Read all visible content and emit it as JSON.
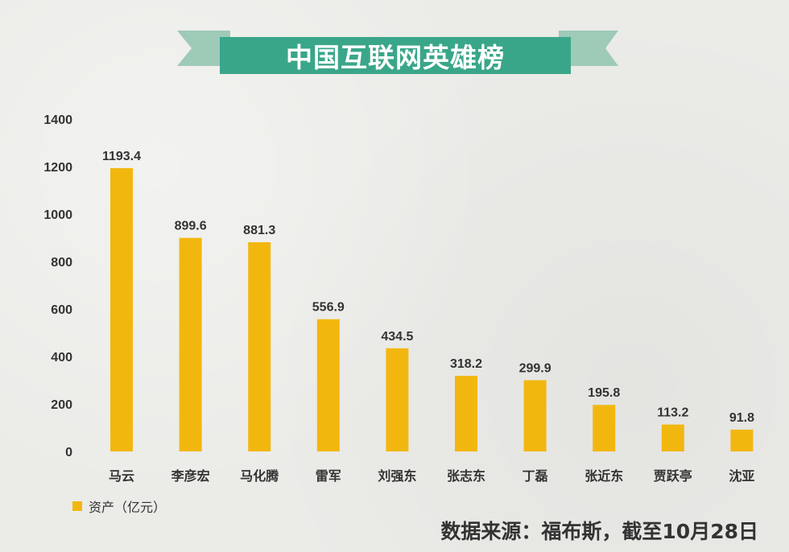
{
  "title": "中国互联网英雄榜",
  "colors": {
    "bar": "#f2b70f",
    "banner": "#3aa689",
    "banner_ribbon": "#9ecab8",
    "text": "#333333"
  },
  "legend_label": "资产（亿元）",
  "source": "数据来源：福布斯，截至10月28日",
  "chart_data": {
    "type": "bar",
    "title": "中国互联网英雄榜",
    "categories": [
      "马云",
      "李彦宏",
      "马化腾",
      "雷军",
      "刘强东",
      "张志东",
      "丁磊",
      "张近东",
      "贾跃亭",
      "沈亚"
    ],
    "series": [
      {
        "name": "资产（亿元）",
        "values": [
          1193.4,
          899.6,
          881.3,
          556.9,
          434.5,
          318.2,
          299.9,
          195.8,
          113.2,
          91.8
        ]
      }
    ],
    "value_labels": [
      "1193.4",
      "899.6",
      "881.3",
      "556.9",
      "434.5",
      "318.2",
      "299.9",
      "195.8",
      "113.2",
      "91.8"
    ],
    "yticks": [
      "0",
      "200",
      "400",
      "600",
      "800",
      "1000",
      "1200",
      "1400"
    ],
    "ylim": [
      0,
      1400
    ],
    "xlabel": "",
    "ylabel": "",
    "grid": false,
    "legend_position": "bottom-left"
  }
}
